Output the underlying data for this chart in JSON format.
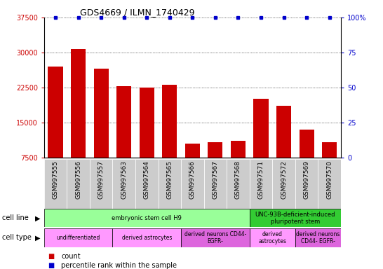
{
  "title": "GDS4669 / ILMN_1740429",
  "samples": [
    "GSM997555",
    "GSM997556",
    "GSM997557",
    "GSM997563",
    "GSM997564",
    "GSM997565",
    "GSM997566",
    "GSM997567",
    "GSM997568",
    "GSM997571",
    "GSM997572",
    "GSM997569",
    "GSM997570"
  ],
  "counts": [
    27000,
    30700,
    26500,
    22800,
    22400,
    23000,
    10500,
    10800,
    11000,
    20000,
    18500,
    13500,
    10800
  ],
  "percentile": [
    100,
    100,
    100,
    100,
    100,
    100,
    100,
    100,
    100,
    100,
    100,
    100,
    100
  ],
  "ylim_left": [
    7500,
    37500
  ],
  "ylim_right": [
    0,
    100
  ],
  "yticks_left": [
    7500,
    15000,
    22500,
    30000,
    37500
  ],
  "yticks_right": [
    0,
    25,
    50,
    75,
    100
  ],
  "bar_color": "#cc0000",
  "dot_color": "#0000cc",
  "cell_line_groups": [
    {
      "label": "embryonic stem cell H9",
      "start": 0,
      "end": 9,
      "color": "#99ff99"
    },
    {
      "label": "UNC-93B-deficient-induced\npluripotent stem",
      "start": 9,
      "end": 13,
      "color": "#33cc33"
    }
  ],
  "cell_type_groups": [
    {
      "label": "undifferentiated",
      "start": 0,
      "end": 3,
      "color": "#ff99ff"
    },
    {
      "label": "derived astrocytes",
      "start": 3,
      "end": 6,
      "color": "#ff99ff"
    },
    {
      "label": "derived neurons CD44-\nEGFR-",
      "start": 6,
      "end": 9,
      "color": "#dd66dd"
    },
    {
      "label": "derived\nastrocytes",
      "start": 9,
      "end": 11,
      "color": "#ff99ff"
    },
    {
      "label": "derived neurons\nCD44- EGFR-",
      "start": 11,
      "end": 13,
      "color": "#dd66dd"
    }
  ],
  "background_color": "#ffffff",
  "tick_label_color_left": "#cc0000",
  "tick_label_color_right": "#0000cc",
  "xtick_bg_color": "#cccccc",
  "cell_line_light": "#99ff99",
  "cell_line_dark": "#33cc33"
}
